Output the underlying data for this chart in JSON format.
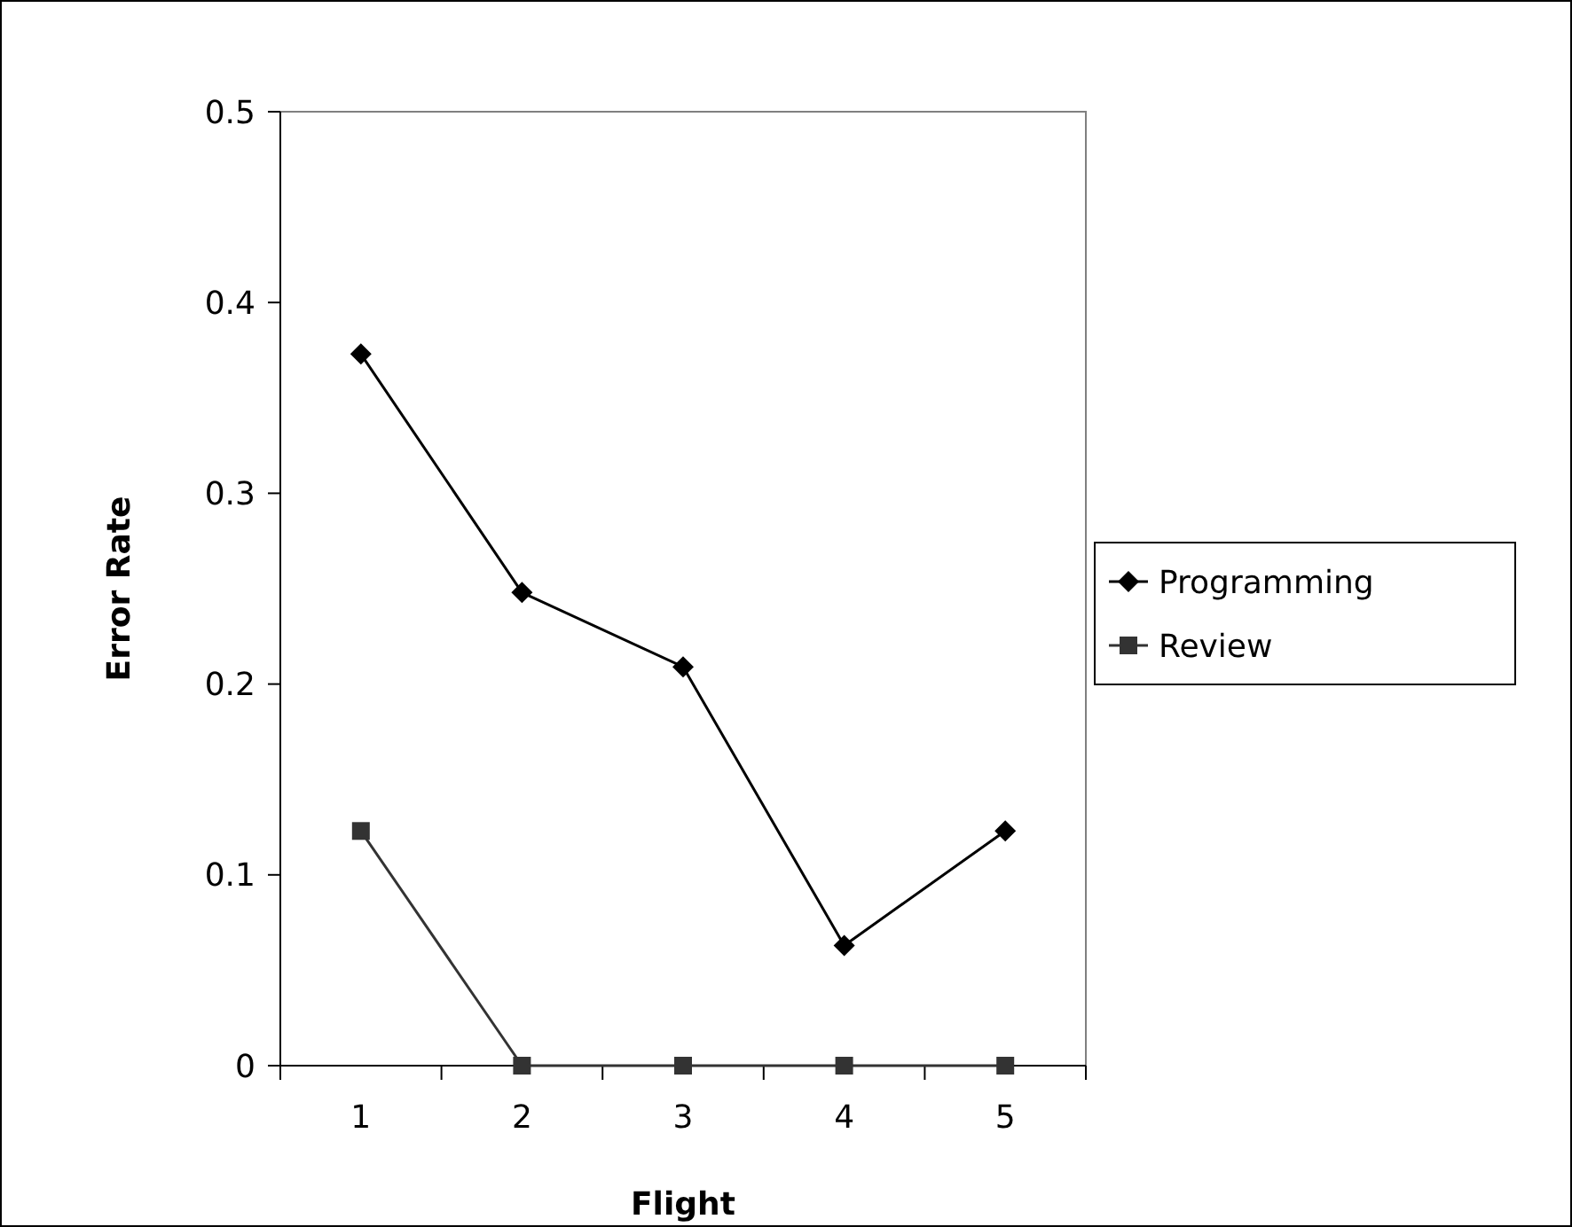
{
  "chart_data": {
    "type": "line",
    "xlabel": "Flight",
    "ylabel": "Error Rate",
    "categories": [
      "1",
      "2",
      "3",
      "4",
      "5"
    ],
    "series": [
      {
        "name": "Programming",
        "color": "#000000",
        "marker": "diamond",
        "values": [
          0.373,
          0.248,
          0.209,
          0.063,
          0.123
        ]
      },
      {
        "name": "Review",
        "color": "#333333",
        "marker": "square",
        "values": [
          0.123,
          0,
          0,
          0,
          0
        ]
      }
    ],
    "ylim": [
      0,
      0.5
    ],
    "yticks": [
      0,
      0.1,
      0.2,
      0.3,
      0.4,
      0.5
    ],
    "grid": false,
    "legend": "right"
  }
}
